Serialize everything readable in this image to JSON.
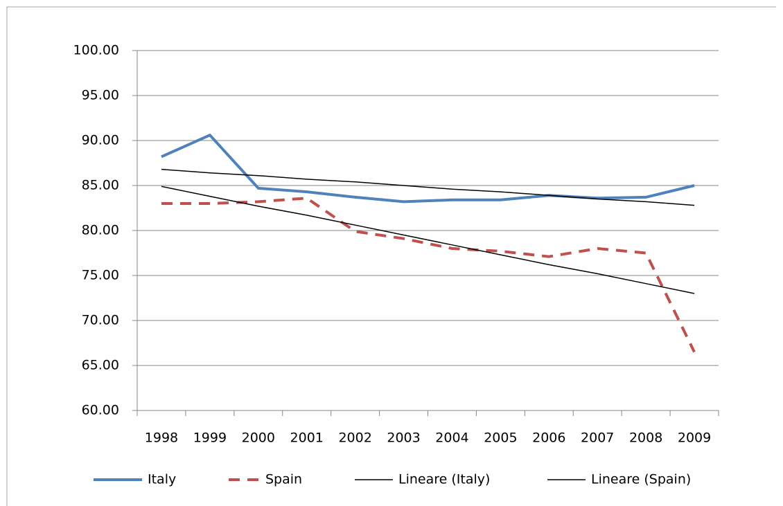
{
  "chart_data": {
    "type": "line",
    "categories": [
      "1998",
      "1999",
      "2000",
      "2001",
      "2002",
      "2003",
      "2004",
      "2005",
      "2006",
      "2007",
      "2008",
      "2009"
    ],
    "series": [
      {
        "name": "Italy",
        "color": "#4f81bd",
        "dash": "solid",
        "trendline": false,
        "values": [
          88.2,
          90.6,
          84.7,
          84.3,
          83.7,
          83.2,
          83.4,
          83.4,
          83.9,
          83.6,
          83.7,
          85.0
        ]
      },
      {
        "name": "Spain",
        "color": "#c0504d",
        "dash": "dashed",
        "trendline": false,
        "values": [
          83.0,
          83.0,
          83.2,
          83.6,
          79.9,
          79.1,
          78.0,
          77.7,
          77.1,
          78.0,
          77.5,
          66.5
        ]
      },
      {
        "name": "Lineare (Italy)",
        "color": "#000000",
        "dash": "solid",
        "trendline": true,
        "values": [
          86.8,
          86.4,
          86.1,
          85.7,
          85.4,
          85.0,
          84.6,
          84.3,
          83.9,
          83.5,
          83.2,
          82.8
        ]
      },
      {
        "name": "Lineare (Spain)",
        "color": "#000000",
        "dash": "solid",
        "trendline": true,
        "values": [
          84.9,
          83.8,
          82.7,
          81.7,
          80.6,
          79.5,
          78.4,
          77.3,
          76.2,
          75.2,
          74.1,
          73.0
        ]
      }
    ],
    "ylim": [
      60,
      100
    ],
    "yticks": [
      {
        "value": 60,
        "label": "60.00"
      },
      {
        "value": 65,
        "label": "65.00"
      },
      {
        "value": 70,
        "label": "70.00"
      },
      {
        "value": 75,
        "label": "75.00"
      },
      {
        "value": 80,
        "label": "80.00"
      },
      {
        "value": 85,
        "label": "85.00"
      },
      {
        "value": 90,
        "label": "90.00"
      },
      {
        "value": 95,
        "label": "95.00"
      },
      {
        "value": 100,
        "label": "100.00"
      }
    ],
    "grid": true,
    "legend": "bottom"
  }
}
